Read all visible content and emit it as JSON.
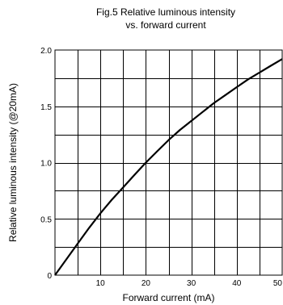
{
  "chart_data": {
    "type": "line",
    "title_lines": [
      "Fig.5 Relative luminous intensity",
      "vs. forward current"
    ],
    "xlabel": "Forward current (mA)",
    "ylabel": "Relative luminous intensity (@20mA)",
    "xlim": [
      0,
      50
    ],
    "ylim": [
      0,
      2.0
    ],
    "x_ticks": [
      10,
      20,
      30,
      40,
      50
    ],
    "x_tick_labels": [
      "10",
      "20",
      "30",
      "40",
      "50"
    ],
    "y_ticks": [
      0,
      0.5,
      1.0,
      1.5,
      2.0
    ],
    "y_tick_labels": [
      "0",
      "0.5",
      "1.0",
      "1.5",
      "2.0"
    ],
    "x_grid_step": 5,
    "y_grid_step": 0.25,
    "grid": true,
    "series": [
      {
        "x": [
          0,
          2.5,
          5,
          7.5,
          10,
          12.5,
          15,
          17.5,
          20,
          22.5,
          25,
          27.5,
          30,
          32.5,
          35,
          37.5,
          40,
          42.5,
          45,
          47.5,
          50
        ],
        "y": [
          0,
          0.14,
          0.28,
          0.42,
          0.55,
          0.67,
          0.78,
          0.89,
          1.0,
          1.1,
          1.2,
          1.29,
          1.37,
          1.45,
          1.53,
          1.6,
          1.67,
          1.74,
          1.8,
          1.86,
          1.92
        ]
      }
    ],
    "colors": {
      "line": "#000000",
      "grid": "#000000"
    }
  }
}
